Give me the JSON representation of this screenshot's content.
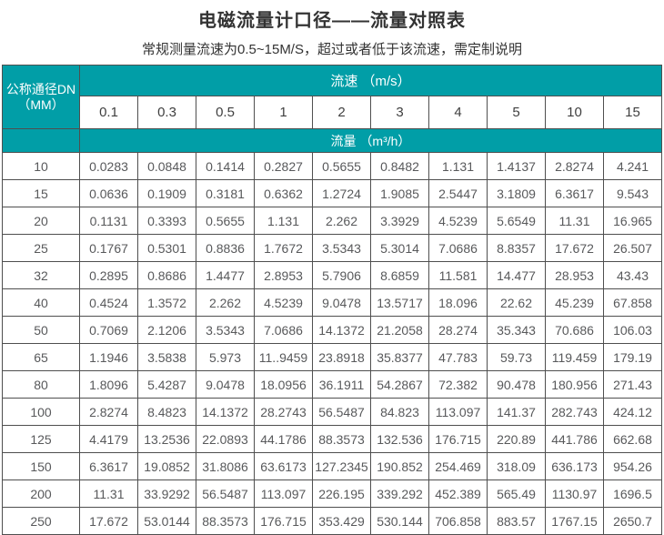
{
  "page": {
    "title": "电磁流量计口径——流量对照表",
    "subtitle": "常规测量流速为0.5~15M/S，超过或者低于该流速，需定制说明"
  },
  "colors": {
    "header_teal": "#019EA7",
    "header_text": "#ffffff",
    "data_text": "#58595b",
    "border": "#4f4f4f"
  },
  "table": {
    "corner_header_line1": "公称通径DN",
    "corner_header_line2": "（MM）",
    "velocity_band_label": "流速 （m/s）",
    "flow_band_label": "流量 （m³/h）",
    "velocities": [
      "0.1",
      "0.3",
      "0.5",
      "1",
      "2",
      "3",
      "4",
      "5",
      "10",
      "15"
    ],
    "rows": [
      {
        "dn": "10",
        "values": [
          "0.0283",
          "0.0848",
          "0.1414",
          "0.2827",
          "0.5655",
          "0.8482",
          "1.131",
          "1.4137",
          "2.8274",
          "4.241"
        ]
      },
      {
        "dn": "15",
        "values": [
          "0.0636",
          "0.1909",
          "0.3181",
          "0.6362",
          "1.2724",
          "1.9085",
          "2.5447",
          "3.1809",
          "6.3617",
          "9.543"
        ]
      },
      {
        "dn": "20",
        "values": [
          "0.1131",
          "0.3393",
          "0.5655",
          "1.131",
          "2.262",
          "3.3929",
          "4.5239",
          "5.6549",
          "11.31",
          "16.965"
        ]
      },
      {
        "dn": "25",
        "values": [
          "0.1767",
          "0.5301",
          "0.8836",
          "1.7672",
          "3.5343",
          "5.3014",
          "7.0686",
          "8.8357",
          "17.672",
          "26.507"
        ]
      },
      {
        "dn": "32",
        "values": [
          "0.2895",
          "0.8686",
          "1.4477",
          "2.8953",
          "5.7906",
          "8.6859",
          "11.581",
          "14.477",
          "28.953",
          "43.43"
        ]
      },
      {
        "dn": "40",
        "values": [
          "0.4524",
          "1.3572",
          "2.262",
          "4.5239",
          "9.0478",
          "13.5717",
          "18.096",
          "22.62",
          "45.239",
          "67.858"
        ]
      },
      {
        "dn": "50",
        "values": [
          "0.7069",
          "2.1206",
          "3.5343",
          "7.0686",
          "14.1372",
          "21.2058",
          "28.274",
          "35.343",
          "70.686",
          "106.03"
        ]
      },
      {
        "dn": "65",
        "values": [
          "1.1946",
          "3.5838",
          "5.973",
          "11..9459",
          "23.8918",
          "35.8377",
          "47.783",
          "59.73",
          "119.459",
          "179.19"
        ]
      },
      {
        "dn": "80",
        "values": [
          "1.8096",
          "5.4287",
          "9.0478",
          "18.0956",
          "36.1911",
          "54.2867",
          "72.382",
          "90.478",
          "180.956",
          "271.43"
        ]
      },
      {
        "dn": "100",
        "values": [
          "2.8274",
          "8.4823",
          "14.1372",
          "28.2743",
          "56.5487",
          "84.823",
          "113.097",
          "141.37",
          "282.743",
          "424.12"
        ]
      },
      {
        "dn": "125",
        "values": [
          "4.4179",
          "13.2536",
          "22.0893",
          "44.1786",
          "88.3573",
          "132.536",
          "176.715",
          "220.89",
          "441.786",
          "662.68"
        ]
      },
      {
        "dn": "150",
        "values": [
          "6.3617",
          "19.0852",
          "31.8086",
          "63.6173",
          "127.2345",
          "190.852",
          "254.469",
          "318.09",
          "636.173",
          "954.26"
        ]
      },
      {
        "dn": "200",
        "values": [
          "11.31",
          "33.9292",
          "56.5487",
          "113.097",
          "226.195",
          "339.292",
          "452.389",
          "565.49",
          "1130.97",
          "1696.5"
        ]
      },
      {
        "dn": "250",
        "values": [
          "17.672",
          "53.0144",
          "88.3573",
          "176.715",
          "353.429",
          "530.144",
          "706.858",
          "883.57",
          "1767.15",
          "2650.7"
        ]
      }
    ]
  }
}
